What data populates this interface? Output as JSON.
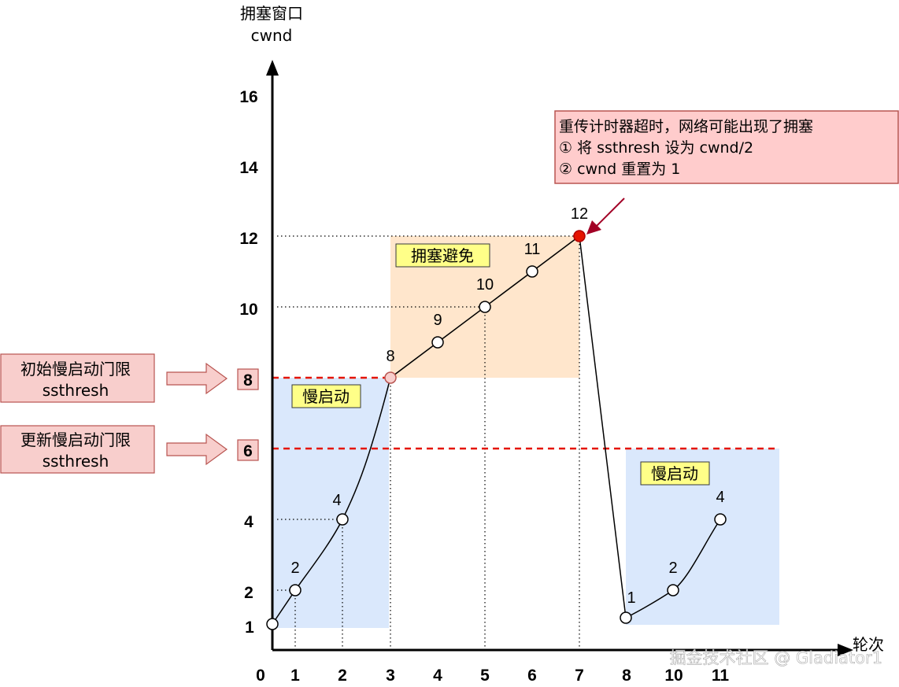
{
  "axes": {
    "y_title_line1": "拥塞窗口",
    "y_title_line2": "cwnd",
    "x_title": "轮次",
    "y_ticks": [
      "1",
      "2",
      "4",
      "6",
      "8",
      "10",
      "12",
      "14",
      "16"
    ],
    "x_ticks": [
      "0",
      "1",
      "2",
      "3",
      "4",
      "5",
      "6",
      "7",
      "8",
      "10",
      "11"
    ]
  },
  "phases": {
    "slow_start_1": "慢启动",
    "congestion_avoidance": "拥塞避免",
    "slow_start_2": "慢启动"
  },
  "points": {
    "p1": "1",
    "p2": "2",
    "p4": "4",
    "p8": "8",
    "p9": "9",
    "p10": "10",
    "p11": "11",
    "p12": "12",
    "q1": "1",
    "q2": "2",
    "q4": "4"
  },
  "note": {
    "line1": "重传计时器超时，网络可能出现了拥塞",
    "line2": "① 将 ssthresh 设为 cwnd/2",
    "line3": "② cwnd 重置为 1"
  },
  "side_labels": {
    "initial_line1": "初始慢启动门限",
    "initial_line2": "ssthresh",
    "updated_line1": "更新慢启动门限",
    "updated_line2": "ssthresh"
  },
  "markers": {
    "initial_value": "8",
    "updated_value": "6"
  },
  "watermark": "掘金技术社区 @ Gladiator1",
  "colors": {
    "slow_start_fill": "#dae8fc",
    "avoidance_fill": "#ffe6cc",
    "threshold_line": "#e51400",
    "note_fill": "#ffcccc",
    "note_border": "#b85450",
    "phase_label_fill": "#ffff88",
    "timeout_point": "#e51400",
    "threshold_point": "#f8cecc",
    "arrow_red": "#a20025"
  }
}
